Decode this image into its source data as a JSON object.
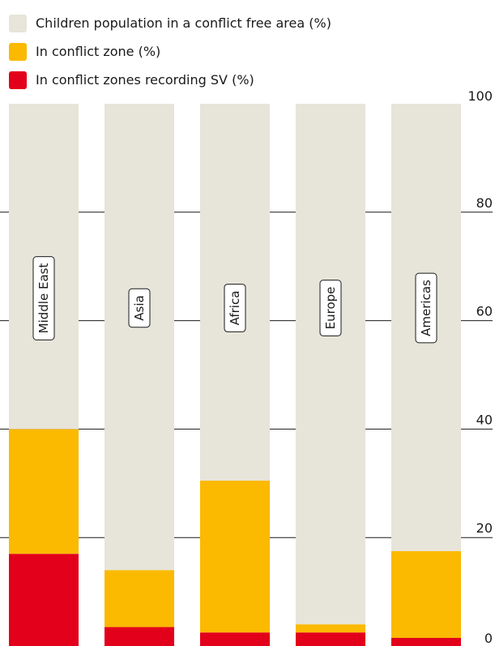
{
  "chart_data": {
    "type": "bar",
    "stacked": true,
    "categories": [
      "Middle East",
      "Asia",
      "Africa",
      "Europe",
      "Americas"
    ],
    "series": [
      {
        "name": "In conflict zones recording SV (%)",
        "color": "#e2001a",
        "values": [
          17,
          3.5,
          2.5,
          2.5,
          1.5
        ]
      },
      {
        "name": "In conflict zone (%)",
        "color": "#fbb900",
        "values": [
          23,
          10.5,
          28,
          1.5,
          16
        ]
      },
      {
        "name": "Children population in a conflict free area (%)",
        "color": "#e7e4d9",
        "values": [
          60,
          86,
          69.5,
          96,
          82.5
        ]
      }
    ],
    "ylim": [
      0,
      100
    ],
    "yticks": [
      0,
      20,
      40,
      60,
      80,
      100
    ],
    "grid": true,
    "legend_position": "top-left",
    "legend_order": [
      "Children population in a conflict free area (%)",
      "In conflict zone (%)",
      "In conflict zones recording SV (%)"
    ]
  }
}
